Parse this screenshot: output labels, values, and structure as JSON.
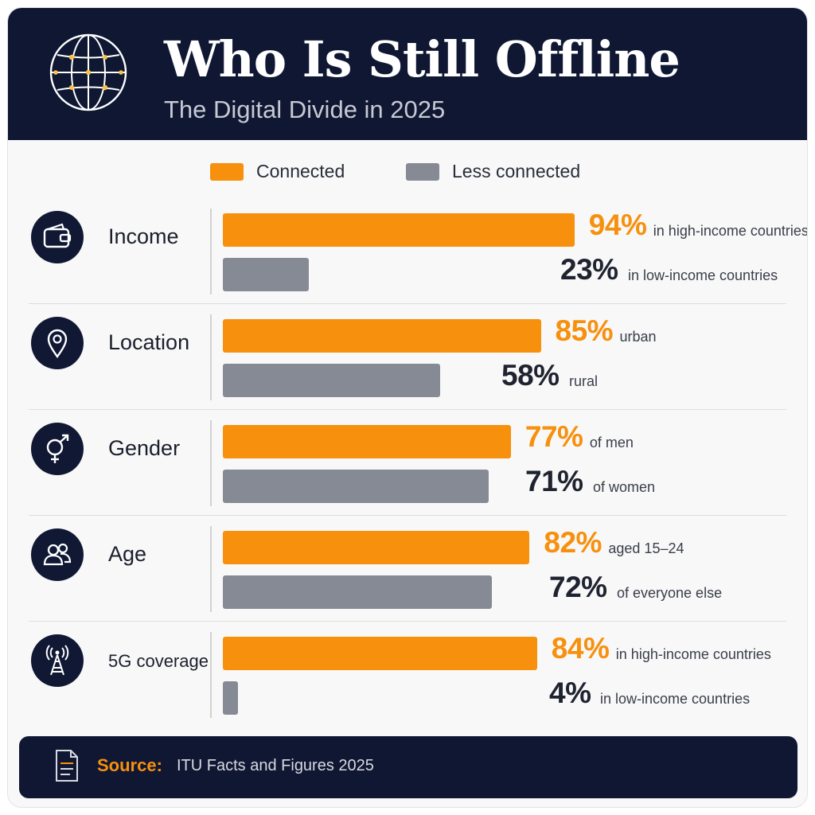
{
  "header": {
    "title": "Who Is Still Offline",
    "subtitle": "The Digital Divide in 2025",
    "icon": "globe-icon"
  },
  "colors": {
    "connected": "#f7900d",
    "less_connected": "#868a94",
    "navy": "#0f1733"
  },
  "legend": {
    "connected_label": "Connected",
    "less_label": "Less connected"
  },
  "chart_data": {
    "type": "bar",
    "orientation": "horizontal",
    "xlim": [
      0,
      100
    ],
    "legend_position": "top",
    "categories": [
      "Income",
      "Location",
      "Gender",
      "Age",
      "5G coverage"
    ],
    "category_icons": [
      "wallet-icon",
      "location-pin-icon",
      "gender-icon",
      "people-icon",
      "antenna-icon"
    ],
    "series": [
      {
        "name": "Connected",
        "values": [
          94,
          85,
          77,
          82,
          84
        ],
        "value_labels": [
          "94%",
          "85%",
          "77%",
          "82%",
          "84%"
        ],
        "descriptions": [
          "in high-income countries",
          "urban",
          "of men",
          "aged 15–24",
          "in high-income countries"
        ]
      },
      {
        "name": "Less connected",
        "values": [
          23,
          58,
          71,
          72,
          4
        ],
        "value_labels": [
          "23%",
          "58%",
          "71%",
          "72%",
          "4%"
        ],
        "descriptions": [
          "in low-income countries",
          "rural",
          "of women",
          "of everyone else",
          "in low-income countries"
        ]
      }
    ]
  },
  "footer": {
    "source_label": "Source:",
    "source_text": "ITU Facts and Figures 2025",
    "icon": "document-icon"
  }
}
